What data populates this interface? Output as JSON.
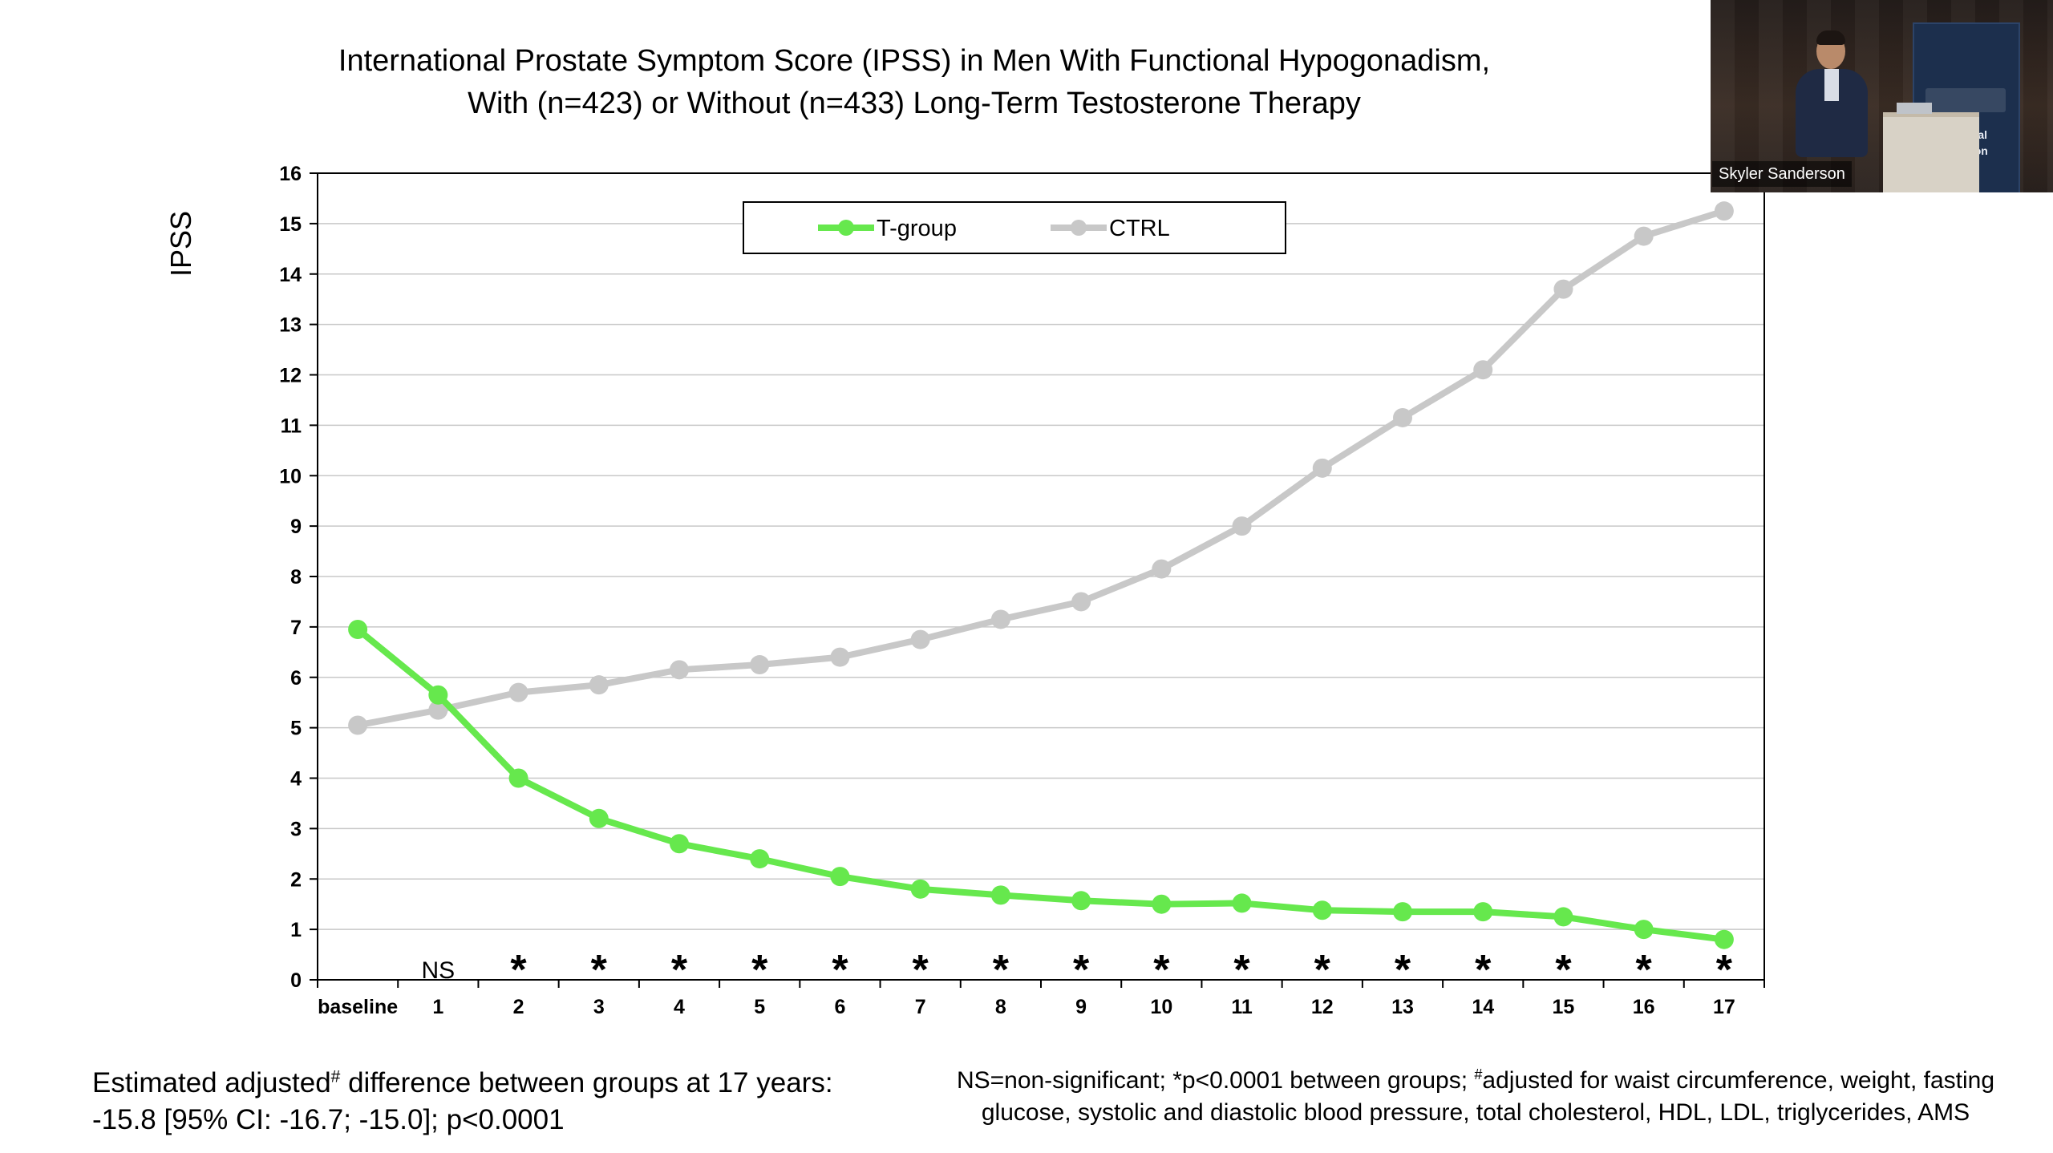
{
  "title": {
    "line1": "International Prostate Symptom Score (IPSS) in Men With Functional Hypogonadism,",
    "line2": "With (n=423) or Without (n=433) Long-Term Testosterone Therapy"
  },
  "chart_data": {
    "type": "line",
    "ylabel": "IPSS",
    "xlabel": "",
    "ylim": [
      0,
      16
    ],
    "yticks": [
      "0",
      "1",
      "2",
      "3",
      "4",
      "5",
      "6",
      "7",
      "8",
      "9",
      "10",
      "11",
      "12",
      "13",
      "14",
      "15",
      "16"
    ],
    "categories": [
      "baseline",
      "1",
      "2",
      "3",
      "4",
      "5",
      "6",
      "7",
      "8",
      "9",
      "10",
      "11",
      "12",
      "13",
      "14",
      "15",
      "16",
      "17"
    ],
    "significance": [
      "",
      "NS",
      "*",
      "*",
      "*",
      "*",
      "*",
      "*",
      "*",
      "*",
      "*",
      "*",
      "*",
      "*",
      "*",
      "*",
      "*",
      "*"
    ],
    "grid": true,
    "legend_position": "top-center",
    "series": [
      {
        "name": "T-group",
        "color": "#66e84d",
        "values": [
          6.95,
          5.65,
          4.0,
          3.2,
          2.7,
          2.4,
          2.05,
          1.8,
          1.68,
          1.57,
          1.5,
          1.52,
          1.38,
          1.35,
          1.35,
          1.25,
          1.0,
          0.8
        ]
      },
      {
        "name": "CTRL",
        "color": "#c8c8c8",
        "values": [
          5.05,
          5.35,
          5.7,
          5.85,
          6.15,
          6.25,
          6.4,
          6.75,
          7.15,
          7.5,
          8.15,
          9.0,
          10.15,
          11.15,
          12.1,
          13.7,
          14.75,
          15.25
        ]
      }
    ]
  },
  "footnotes": {
    "left_line1_a": "Estimated adjusted",
    "left_line1_sup": "#",
    "left_line1_b": " difference between groups at 17 years:",
    "left_line2": "-15.8 [95% CI: -16.7; -15.0]; p<0.0001",
    "right_line1_a": "NS=non-significant; *p<0.0001 between groups; ",
    "right_line1_sup": "#",
    "right_line1_b": "adjusted for waist circumference, weight, fasting",
    "right_line2": "glucose, systolic and diastolic blood pressure, total cholesterol, HDL, LDL, triglycerides, AMS"
  },
  "video_inset": {
    "speaker_name": "Skyler Sanderson",
    "banner_line1": "General",
    "banner_line2": "Session"
  }
}
